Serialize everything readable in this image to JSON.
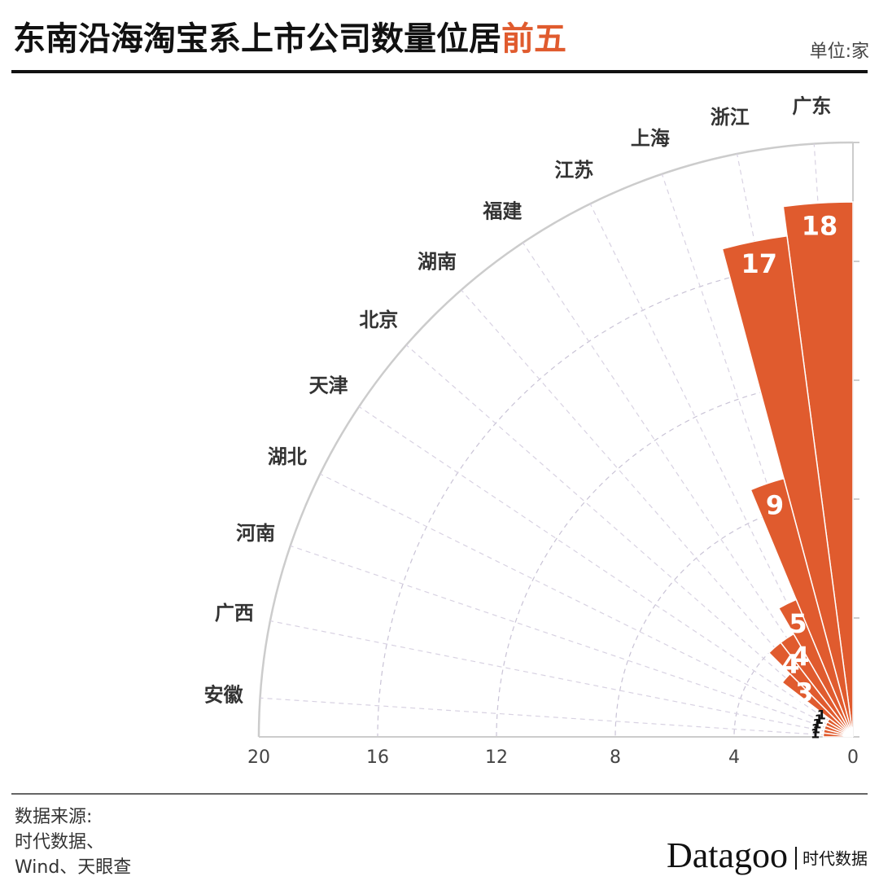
{
  "chart_data": {
    "type": "polar_bar",
    "title": "东南沿海淘宝系上市公司数量位居",
    "title_highlight": "前五",
    "unit": "单位:家",
    "source": [
      "数据来源:",
      "时代数据、",
      "Wind、天眼查"
    ],
    "brand": "Datagoo",
    "brand_sub": "时代数据",
    "categories": [
      "广东",
      "浙江",
      "上海",
      "江苏",
      "福建",
      "湖南",
      "北京",
      "天津",
      "湖北",
      "河南",
      "广西",
      "安徽"
    ],
    "values": [
      18,
      17,
      9,
      5,
      4,
      4,
      3,
      1,
      1,
      1,
      1,
      1
    ],
    "color": "#e05b2e",
    "ylim": [
      0,
      20
    ],
    "yticks": [
      0,
      4,
      8,
      12,
      16,
      20
    ],
    "grid": true
  }
}
